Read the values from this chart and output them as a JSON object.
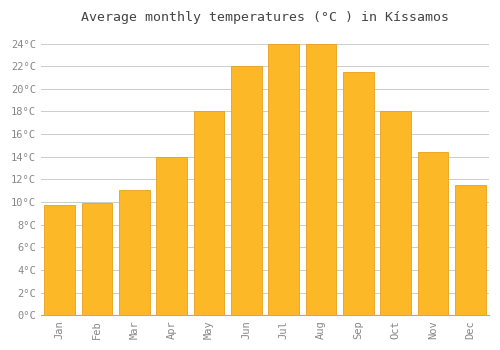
{
  "title": "Average monthly temperatures (°C ) in Kíssamos",
  "months": [
    "Jan",
    "Feb",
    "Mar",
    "Apr",
    "May",
    "Jun",
    "Jul",
    "Aug",
    "Sep",
    "Oct",
    "Nov",
    "Dec"
  ],
  "values": [
    9.7,
    9.9,
    11.1,
    14.0,
    18.0,
    22.0,
    24.0,
    24.0,
    21.5,
    18.0,
    14.4,
    11.5
  ],
  "bar_color": "#FDB827",
  "bar_edge_color": "#E8A020",
  "background_color": "#FFFFFF",
  "grid_color": "#CCCCCC",
  "title_color": "#444444",
  "tick_label_color": "#888888",
  "ylim": [
    0,
    25
  ],
  "yticks": [
    0,
    2,
    4,
    6,
    8,
    10,
    12,
    14,
    16,
    18,
    20,
    22,
    24
  ],
  "title_fontsize": 9.5,
  "tick_fontsize": 7.5,
  "bar_width": 0.82,
  "figsize": [
    5.0,
    3.5
  ],
  "dpi": 100
}
